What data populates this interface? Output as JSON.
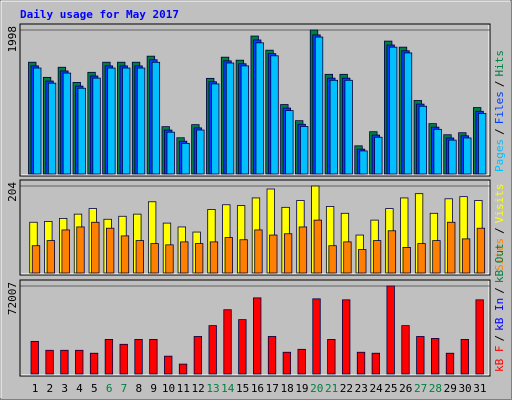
{
  "chart_data": [
    {
      "type": "bar",
      "title": "Daily usage for May 2017",
      "title_color": "#0000ff",
      "ylim": [
        0,
        1998
      ],
      "yticks": [
        1998
      ],
      "legend_separator": "/",
      "series": [
        {
          "name": "Pages",
          "color": "#00c0ff",
          "values": [
            1470,
            1260,
            1400,
            1190,
            1330,
            1470,
            1470,
            1470,
            1550,
            580,
            425,
            610,
            1250,
            1540,
            1500,
            1820,
            1640,
            880,
            660,
            1900,
            1300,
            1300,
            320,
            510,
            1760,
            1680,
            940,
            620,
            470,
            500,
            840
          ]
        },
        {
          "name": "Files",
          "color": "#0040ff",
          "values": [
            1500,
            1290,
            1430,
            1220,
            1360,
            1500,
            1500,
            1500,
            1585,
            610,
            455,
            640,
            1280,
            1570,
            1530,
            1860,
            1670,
            915,
            690,
            1930,
            1330,
            1330,
            345,
            540,
            1790,
            1710,
            970,
            650,
            500,
            530,
            870
          ]
        },
        {
          "name": "Hits",
          "color": "#008040",
          "values": [
            1551,
            1341,
            1481,
            1271,
            1411,
            1551,
            1551,
            1551,
            1635,
            657,
            503,
            685,
            1327,
            1621,
            1579,
            1914,
            1718,
            964,
            740,
            1998,
            1383,
            1383,
            391,
            587,
            1844,
            1760,
            1020,
            699,
            545,
            573,
            922
          ]
        }
      ]
    },
    {
      "type": "bar",
      "ylim": [
        0,
        204
      ],
      "yticks": [
        204
      ],
      "legend_separator": "/",
      "series": [
        {
          "name": "Sites",
          "color": "#ff8000",
          "values": [
            64,
            76,
            101,
            108,
            119,
            105,
            87,
            76,
            69,
            66,
            73,
            69,
            73,
            83,
            78,
            101,
            89,
            92,
            108,
            124,
            64,
            73,
            55,
            76,
            99,
            60,
            69,
            76,
            119,
            80,
            105
          ]
        },
        {
          "name": "Visits",
          "color": "#ffff00",
          "values": [
            119,
            121,
            128,
            138,
            151,
            126,
            133,
            138,
            167,
            117,
            108,
            96,
            149,
            160,
            158,
            176,
            197,
            154,
            170,
            204,
            156,
            140,
            89,
            124,
            151,
            176,
            186,
            140,
            174,
            179,
            170
          ]
        }
      ]
    },
    {
      "type": "bar",
      "ylim": [
        0,
        72007
      ],
      "yticks": [
        72007
      ],
      "legend_separator": "/",
      "categories": [
        "1",
        "2",
        "3",
        "4",
        "5",
        "6",
        "7",
        "8",
        "9",
        "10",
        "11",
        "12",
        "13",
        "14",
        "15",
        "16",
        "17",
        "18",
        "19",
        "20",
        "21",
        "22",
        "23",
        "24",
        "25",
        "26",
        "27",
        "28",
        "29",
        "30",
        "31"
      ],
      "category_colors": [
        "#000000",
        "#000000",
        "#000000",
        "#000000",
        "#000000",
        "#008040",
        "#008040",
        "#000000",
        "#000000",
        "#000000",
        "#000000",
        "#000000",
        "#008040",
        "#008040",
        "#000000",
        "#000000",
        "#000000",
        "#000000",
        "#000000",
        "#008040",
        "#008040",
        "#000000",
        "#000000",
        "#000000",
        "#000000",
        "#000000",
        "#008040",
        "#008040",
        "#000000",
        "#000000",
        "#000000"
      ],
      "series": [
        {
          "name": "kB F",
          "color": "#ff0000",
          "values": [
            26700,
            19400,
            19400,
            19400,
            17000,
            28300,
            24300,
            28300,
            28300,
            14600,
            8100,
            30700,
            39600,
            52600,
            44500,
            62300,
            30700,
            17800,
            20200,
            61500,
            28300,
            60700,
            17800,
            17000,
            72007,
            39600,
            30700,
            29100,
            17000,
            28300,
            60700
          ]
        },
        {
          "name": "kB In",
          "color": "#0000ff"
        },
        {
          "name": "kB Out",
          "color": "#008040"
        }
      ]
    }
  ]
}
